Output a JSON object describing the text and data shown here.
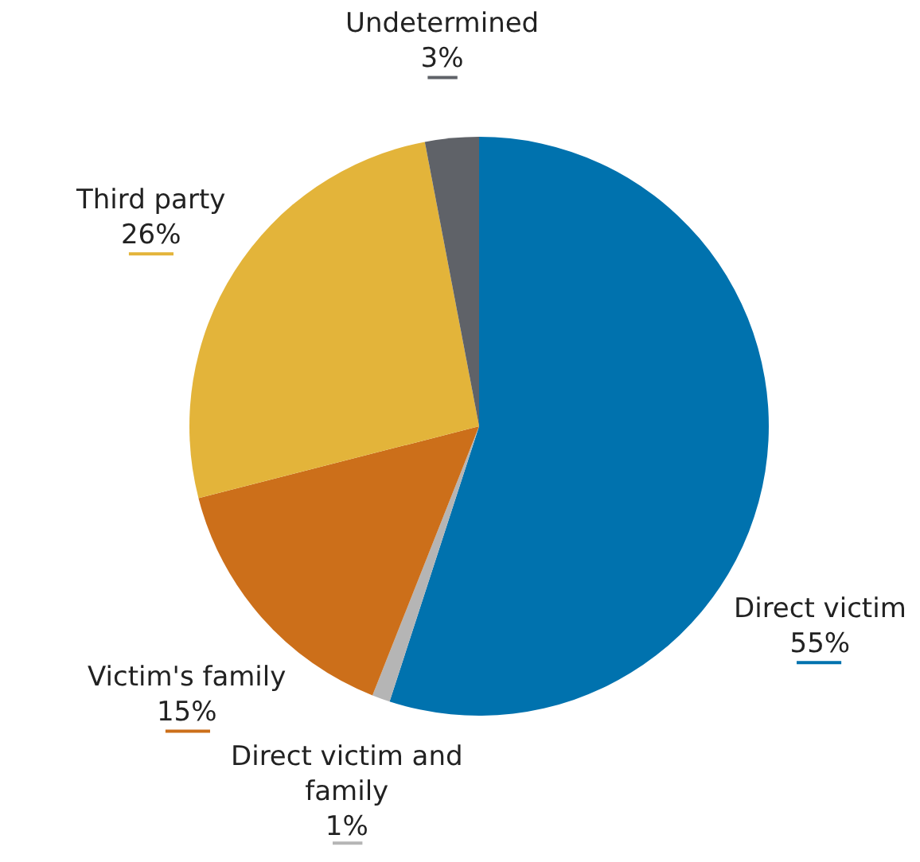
{
  "chart_data": {
    "type": "pie",
    "categories": [
      "Direct victim",
      "Direct victim and family",
      "Victim's family",
      "Third party",
      "Undetermined"
    ],
    "values": [
      55,
      1,
      15,
      26,
      3
    ],
    "value_labels": [
      "55%",
      "1%",
      "15%",
      "26%",
      "3%"
    ],
    "colors": [
      "#0072ae",
      "#b5b5b5",
      "#cc6f1a",
      "#e3b43a",
      "#5f6268"
    ],
    "legend": false
  }
}
